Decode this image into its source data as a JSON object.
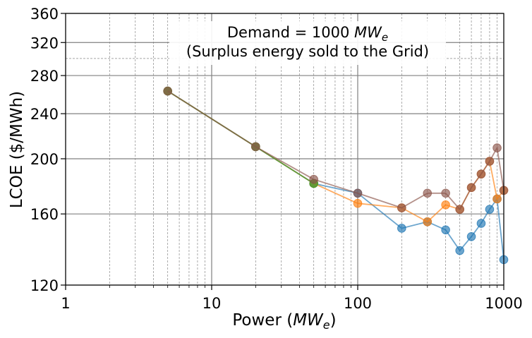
{
  "chart_data": {
    "type": "line",
    "title_line1_prefix": "Demand  = 1000 ",
    "title_line1_unit_base": "MW",
    "title_line1_unit_sub": "e",
    "title_line2": "(Surplus energy sold to the Grid)",
    "xlabel_prefix": "Power (",
    "xlabel_unit_base": "MW",
    "xlabel_unit_sub": "e",
    "xlabel_suffix": ")",
    "ylabel": "LCOE ($/MWh)",
    "x_scale": "log",
    "y_scale": "log",
    "xlim": [
      1,
      1000
    ],
    "ylim": [
      120,
      360
    ],
    "x_ticks": [
      1,
      10,
      100,
      1000
    ],
    "x_tick_labels": [
      "1",
      "10",
      "100",
      "1000"
    ],
    "y_ticks": [
      120,
      160,
      200,
      240,
      280,
      320,
      360
    ],
    "y_tick_labels": [
      "120",
      "160",
      "200",
      "240",
      "280",
      "320",
      "360"
    ],
    "grid": true,
    "series": [
      {
        "color": "#1f77b4",
        "x": [
          5,
          20,
          50,
          100,
          200,
          300,
          400,
          500,
          600,
          700,
          800,
          900,
          1000
        ],
        "y": [
          263,
          210,
          181,
          174,
          151,
          155,
          150,
          138,
          146,
          154,
          163,
          170,
          133
        ]
      },
      {
        "color": "#ff7f0e",
        "x": [
          5,
          20,
          50,
          100,
          200,
          300,
          400,
          500,
          600,
          700,
          800,
          900,
          1000
        ],
        "y": [
          263,
          210,
          181,
          167,
          164,
          155,
          166,
          163,
          178,
          188,
          198,
          170,
          176
        ]
      },
      {
        "color": "#2ca02c",
        "x": [
          5,
          20,
          50
        ],
        "y": [
          263,
          210,
          181
        ]
      },
      {
        "color": "#8c564b",
        "x": [
          5,
          20,
          50,
          100,
          200,
          300,
          400,
          500,
          600,
          700,
          800,
          900,
          1000
        ],
        "y": [
          263,
          210,
          184,
          174,
          164,
          174,
          174,
          163,
          178,
          188,
          198,
          209,
          176
        ]
      }
    ]
  }
}
